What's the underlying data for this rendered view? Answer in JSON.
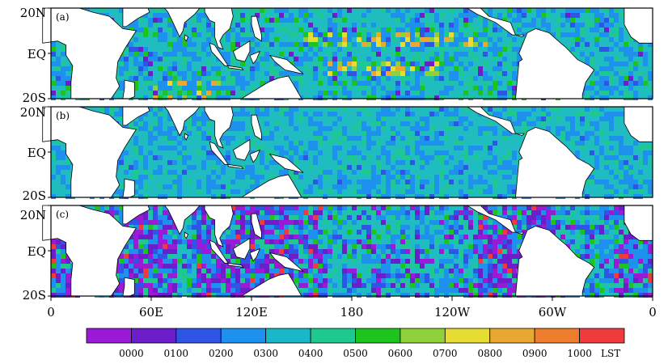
{
  "panels": [
    {
      "label": "(a)",
      "seed": 11,
      "profile": "a"
    },
    {
      "label": "(b)",
      "seed": 29,
      "profile": "b"
    },
    {
      "label": "(c)",
      "seed": 47,
      "profile": "c"
    }
  ],
  "lat_ticks": [
    "20N",
    "EQ",
    "20S"
  ],
  "lon_ticks": [
    "0",
    "60E",
    "120E",
    "180",
    "120W",
    "60W",
    "0"
  ],
  "colorbar": {
    "colors": [
      "#9a1ad6",
      "#6b1ec9",
      "#2f55e6",
      "#1e90ee",
      "#18b8c8",
      "#1fc890",
      "#1ec41e",
      "#8ed13a",
      "#e6dc34",
      "#e8a832",
      "#ef7d2e",
      "#ee3c3c"
    ],
    "labels": [
      "0000",
      "0100",
      "0200",
      "0300",
      "0400",
      "0500",
      "0600",
      "0700",
      "0800",
      "0900",
      "1000"
    ],
    "unit": "LST"
  },
  "colors": {
    "land": "#ffffff",
    "coast": "#000000",
    "ocean_base": "#1fbcc0"
  }
}
